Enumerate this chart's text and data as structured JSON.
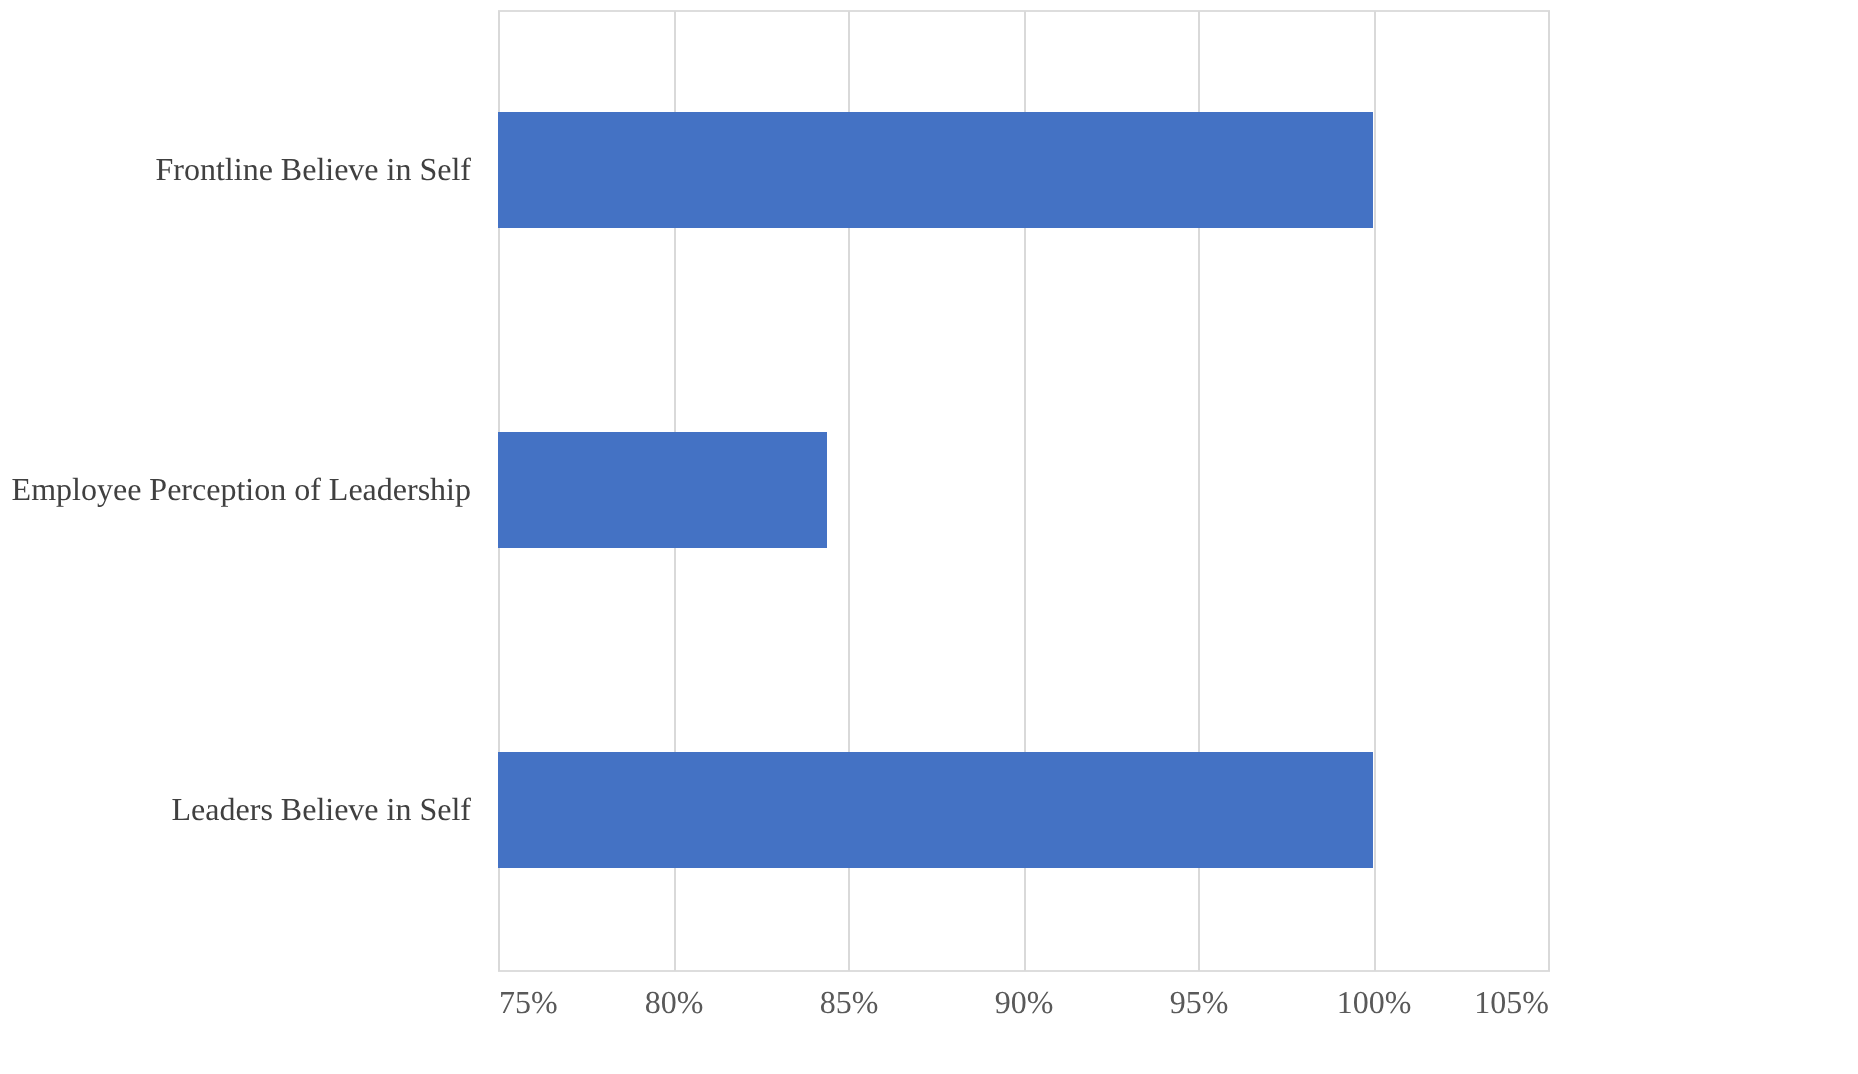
{
  "chart_data": {
    "type": "bar",
    "orientation": "horizontal",
    "categories": [
      "Frontline Believe in Self",
      "Employee Perception of Leadership",
      "Leaders Believe in Self"
    ],
    "values": [
      100,
      84.4,
      100
    ],
    "color": "#4472c4",
    "xlim": [
      75,
      105
    ],
    "xticks": [
      {
        "value": 75,
        "label": "75%"
      },
      {
        "value": 80,
        "label": "80%"
      },
      {
        "value": 85,
        "label": "85%"
      },
      {
        "value": 90,
        "label": "90%"
      },
      {
        "value": 95,
        "label": "95%"
      },
      {
        "value": 100,
        "label": "100%"
      },
      {
        "value": 105,
        "label": "105%"
      }
    ],
    "grid": "x"
  }
}
